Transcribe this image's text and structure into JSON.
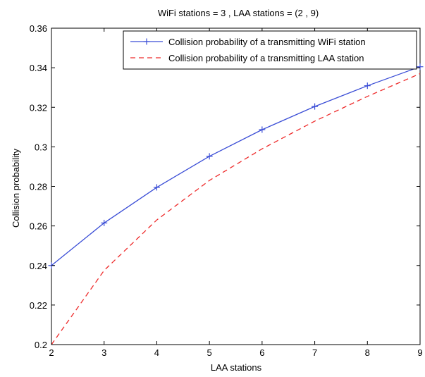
{
  "chart_data": {
    "type": "line",
    "title": "WiFi stations = 3 , LAA stations = (2 , 9)",
    "xlabel": "LAA stations",
    "ylabel": "Collision probability",
    "xlim": [
      2,
      9
    ],
    "ylim": [
      0.2,
      0.36
    ],
    "xticks": [
      2,
      3,
      4,
      5,
      6,
      7,
      8,
      9
    ],
    "yticks": [
      0.2,
      0.22,
      0.24,
      0.26,
      0.28,
      0.3,
      0.32,
      0.34,
      0.36
    ],
    "ytick_labels": [
      "0.2",
      "0.22",
      "0.24",
      "0.26",
      "0.28",
      "0.3",
      "0.32",
      "0.34",
      "0.36"
    ],
    "grid": false,
    "legend_position": "top-right",
    "x": [
      2,
      3,
      4,
      5,
      6,
      7,
      8,
      9
    ],
    "series": [
      {
        "name": "Collision probability of a transmitting WiFi station",
        "values": [
          0.24,
          0.2615,
          0.2795,
          0.2952,
          0.3087,
          0.3204,
          0.3309,
          0.3405
        ],
        "color": "#3a4dd6",
        "style": "solid",
        "marker": "+"
      },
      {
        "name": "Collision probability of a transmitting LAA station",
        "values": [
          0.2,
          0.2375,
          0.263,
          0.283,
          0.299,
          0.313,
          0.3255,
          0.337
        ],
        "color": "#ee2b2b",
        "style": "dashed",
        "marker": "none"
      }
    ]
  }
}
